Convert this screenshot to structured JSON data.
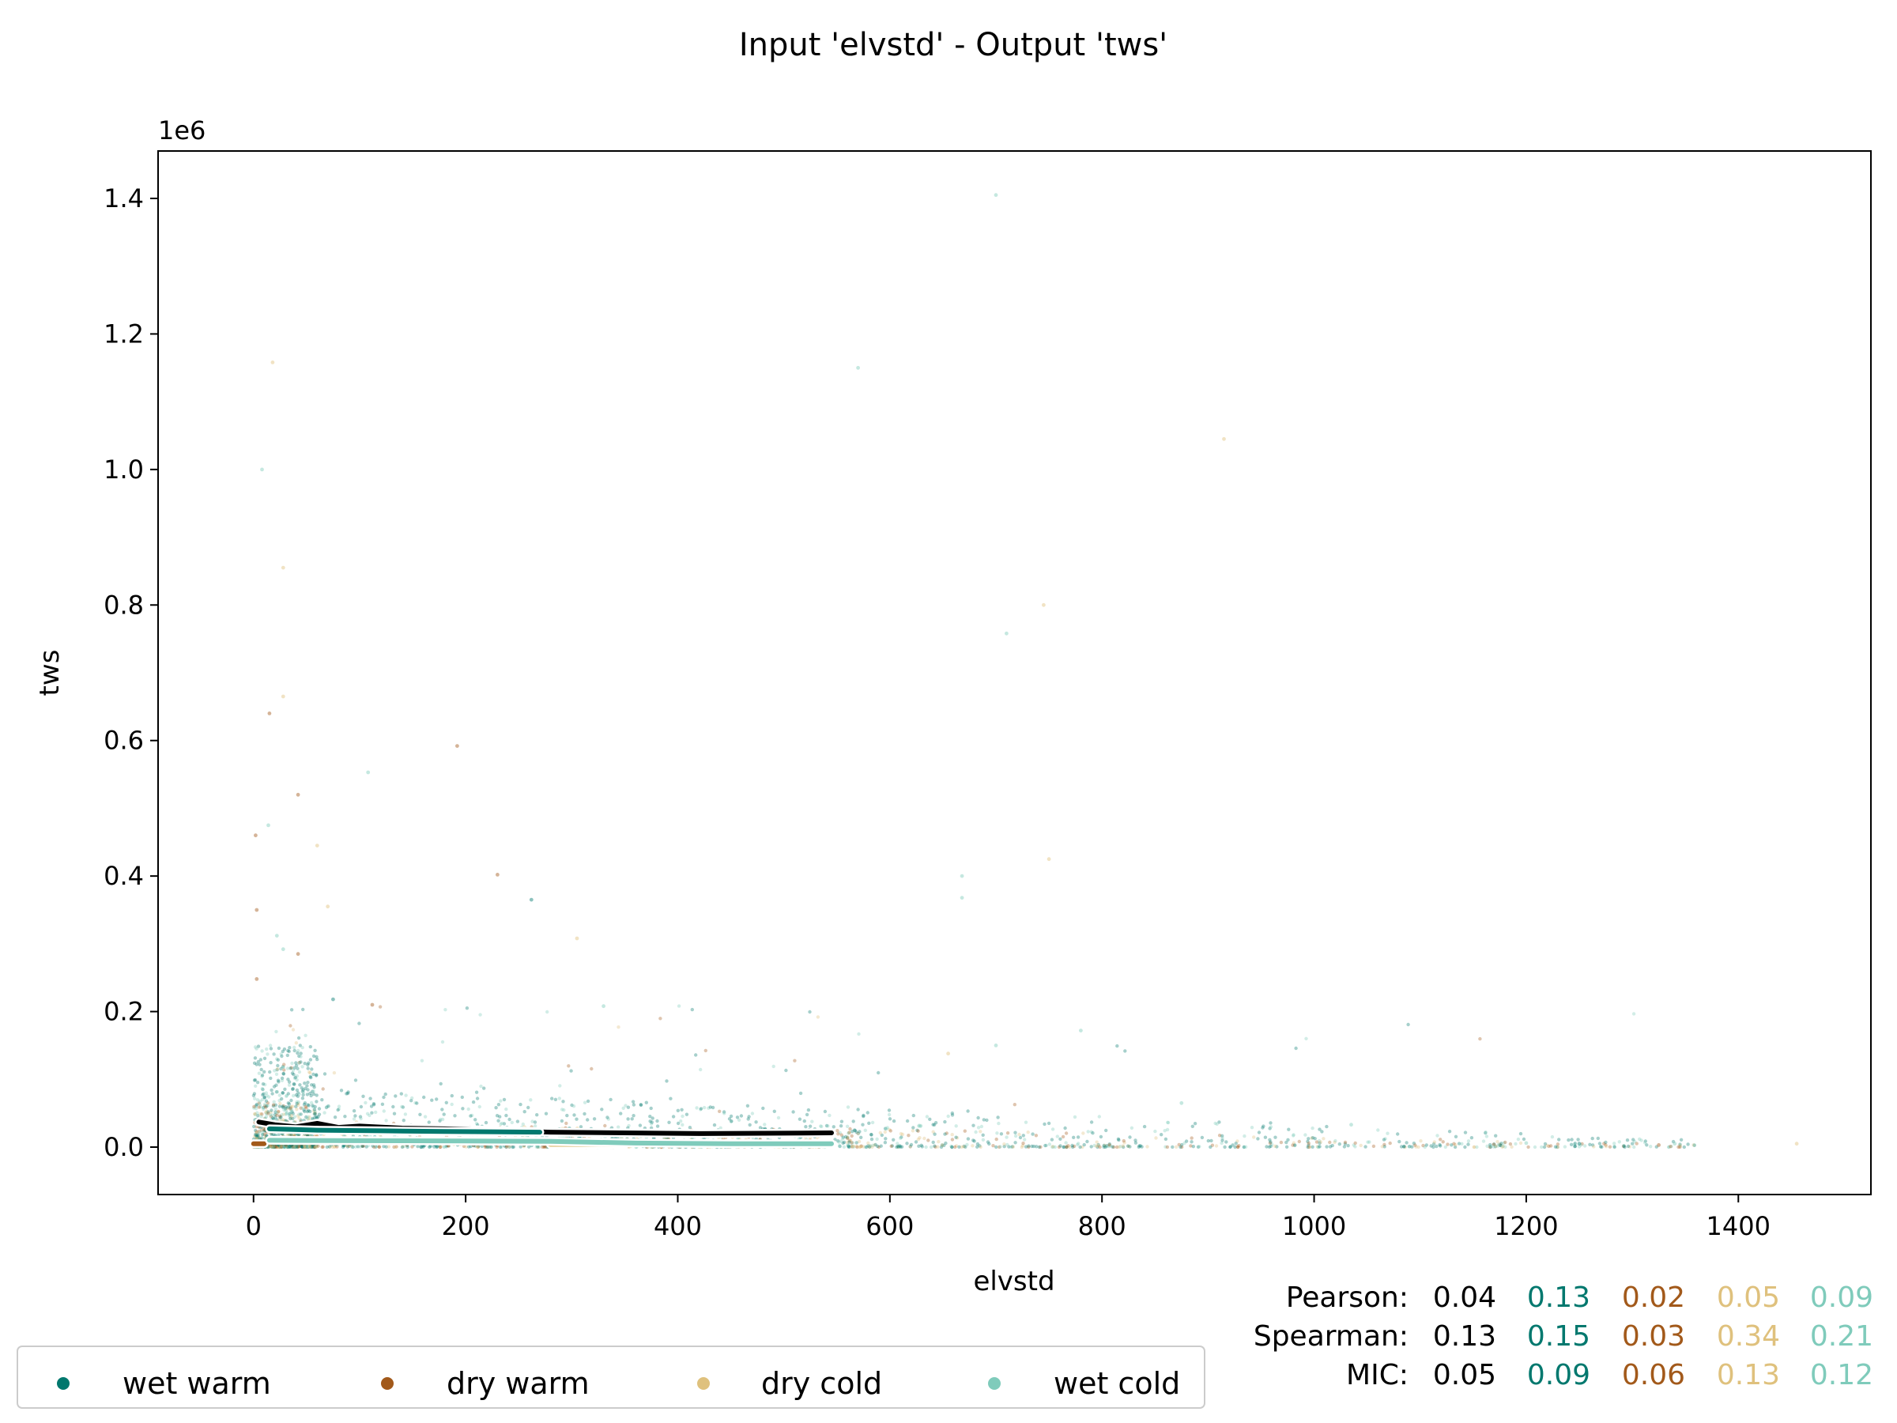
{
  "chart_data": {
    "type": "scatter",
    "title": "Input 'elvstd' - Output 'tws'",
    "xlabel": "elvstd",
    "ylabel": "tws",
    "y_offset_label": "1e6",
    "xlim": [
      -90,
      1525
    ],
    "ylim": [
      -70000,
      1470000
    ],
    "x_ticks": [
      0,
      200,
      400,
      600,
      800,
      1000,
      1200,
      1400
    ],
    "x_tick_labels": [
      "0",
      "200",
      "400",
      "600",
      "800",
      "1000",
      "1200",
      "1400"
    ],
    "y_ticks": [
      0,
      200000,
      400000,
      600000,
      800000,
      1000000,
      1200000,
      1400000
    ],
    "y_tick_labels": [
      "0.0",
      "0.2",
      "0.4",
      "0.6",
      "0.8",
      "1.0",
      "1.2",
      "1.4"
    ],
    "grid": false,
    "legend_position": "bottom-left",
    "series": [
      {
        "name": "wet warm",
        "color": "#01786e"
      },
      {
        "name": "dry warm",
        "color": "#a2591a"
      },
      {
        "name": "dry cold",
        "color": "#dfc17d"
      },
      {
        "name": "wet cold",
        "color": "#7fcbbb"
      }
    ],
    "trend_lines": [
      {
        "series": "all",
        "color": "#000000",
        "x": [
          5,
          20,
          40,
          60,
          80,
          100,
          140,
          180,
          220,
          280,
          350,
          420,
          545
        ],
        "y": [
          37000,
          33000,
          30000,
          35000,
          29000,
          31000,
          28000,
          27000,
          25000,
          22000,
          21000,
          20000,
          21000
        ]
      },
      {
        "series": "wet warm",
        "color": "#01786e",
        "x": [
          15,
          60,
          120,
          180,
          270
        ],
        "y": [
          27000,
          25000,
          24000,
          23000,
          22000
        ]
      },
      {
        "series": "dry warm",
        "color": "#a2591a",
        "x": [
          0,
          10
        ],
        "y": [
          5000,
          5000
        ]
      },
      {
        "series": "dry cold",
        "color": "#dfc17d",
        "x": [
          280,
          350
        ],
        "y": [
          4000,
          4000
        ]
      },
      {
        "series": "wet cold",
        "color": "#7fcbbb",
        "x": [
          15,
          100,
          200,
          280,
          360,
          450,
          545
        ],
        "y": [
          10000,
          9500,
          9000,
          8500,
          6000,
          5000,
          5000
        ]
      }
    ],
    "outliers": [
      {
        "series": "wet cold",
        "x": 700,
        "y": 1405000
      },
      {
        "series": "dry cold",
        "x": 18,
        "y": 1158000
      },
      {
        "series": "wet cold",
        "x": 570,
        "y": 1150000
      },
      {
        "series": "dry cold",
        "x": 915,
        "y": 1045000
      },
      {
        "series": "wet cold",
        "x": 8,
        "y": 1000000
      },
      {
        "series": "dry cold",
        "x": 28,
        "y": 855000
      },
      {
        "series": "dry cold",
        "x": 745,
        "y": 800000
      },
      {
        "series": "wet cold",
        "x": 710,
        "y": 758000
      },
      {
        "series": "dry cold",
        "x": 28,
        "y": 665000
      },
      {
        "series": "dry warm",
        "x": 15,
        "y": 640000
      },
      {
        "series": "dry warm",
        "x": 192,
        "y": 592000
      },
      {
        "series": "wet cold",
        "x": 108,
        "y": 553000
      },
      {
        "series": "dry warm",
        "x": 42,
        "y": 520000
      },
      {
        "series": "wet cold",
        "x": 14,
        "y": 475000
      },
      {
        "series": "dry warm",
        "x": 2,
        "y": 460000
      },
      {
        "series": "dry cold",
        "x": 60,
        "y": 445000
      },
      {
        "series": "dry cold",
        "x": 750,
        "y": 425000
      },
      {
        "series": "dry warm",
        "x": 230,
        "y": 402000
      },
      {
        "series": "wet cold",
        "x": 668,
        "y": 400000
      },
      {
        "series": "wet warm",
        "x": 262,
        "y": 365000
      },
      {
        "series": "wet cold",
        "x": 668,
        "y": 368000
      },
      {
        "series": "dry warm",
        "x": 3,
        "y": 350000
      },
      {
        "series": "dry cold",
        "x": 70,
        "y": 355000
      },
      {
        "series": "wet cold",
        "x": 22,
        "y": 312000
      },
      {
        "series": "dry cold",
        "x": 305,
        "y": 308000
      },
      {
        "series": "wet cold",
        "x": 28,
        "y": 292000
      },
      {
        "series": "dry warm",
        "x": 42,
        "y": 285000
      },
      {
        "series": "dry warm",
        "x": 3,
        "y": 248000
      },
      {
        "series": "wet warm",
        "x": 75,
        "y": 218000
      },
      {
        "series": "dry warm",
        "x": 112,
        "y": 210000
      },
      {
        "series": "wet cold",
        "x": 330,
        "y": 208000
      },
      {
        "series": "wet cold",
        "x": 780,
        "y": 172000
      },
      {
        "series": "wet cold",
        "x": 700,
        "y": 150000
      },
      {
        "series": "dry cold",
        "x": 655,
        "y": 138000
      },
      {
        "series": "wet cold",
        "x": 875,
        "y": 65000
      },
      {
        "series": "wet cold",
        "x": 1035,
        "y": 33000
      },
      {
        "series": "wet cold",
        "x": 1340,
        "y": 5000
      },
      {
        "series": "dry cold",
        "x": 1455,
        "y": 5000
      },
      {
        "series": "dry warm",
        "x": 1325,
        "y": 3000
      },
      {
        "series": "wet warm",
        "x": 1250,
        "y": 5000
      },
      {
        "series": "wet cold",
        "x": 1200,
        "y": 6000
      }
    ],
    "stats": [
      {
        "label": "Pearson:",
        "values": [
          "0.04",
          "0.13",
          "0.02",
          "0.05",
          "0.09"
        ]
      },
      {
        "label": "Spearman:",
        "values": [
          "0.13",
          "0.15",
          "0.03",
          "0.34",
          "0.21"
        ]
      },
      {
        "label": "MIC:",
        "values": [
          "0.05",
          "0.09",
          "0.06",
          "0.13",
          "0.12"
        ]
      }
    ],
    "stats_colors": [
      "#000000",
      "#01786e",
      "#a2591a",
      "#dfc17d",
      "#7fcbbb"
    ]
  }
}
